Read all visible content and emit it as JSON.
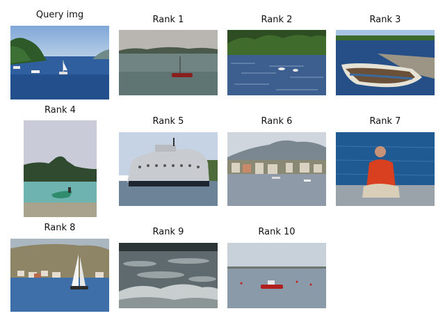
{
  "figure": {
    "panels": [
      {
        "id": "query",
        "caption": "Query img",
        "scene": "harbor with green hills, moored sailboats and blue bay"
      },
      {
        "id": "rank1",
        "caption": "Rank 1",
        "scene": "grey calm lake with small red boat"
      },
      {
        "id": "rank2",
        "caption": "Rank 2",
        "scene": "rippled blue water with dark treeline and swans"
      },
      {
        "id": "rank3",
        "caption": "Rank 3",
        "scene": "wooden rowboat moored at a stone pier"
      },
      {
        "id": "rank4",
        "caption": "Rank 4",
        "scene": "rocky hill over turquoise water with a small boat"
      },
      {
        "id": "rank5",
        "caption": "Rank 5",
        "scene": "white old ship with round windows in harbor"
      },
      {
        "id": "rank6",
        "caption": "Rank 6",
        "scene": "seaside town below mountains with boats"
      },
      {
        "id": "rank7",
        "caption": "Rank 7",
        "scene": "man in red jacket sitting on seawall by blue sea"
      },
      {
        "id": "rank8",
        "caption": "Rank 8",
        "scene": "white sailboat in front of a hillside village"
      },
      {
        "id": "rank9",
        "caption": "Rank 9",
        "scene": "grey choppy waves with white foam"
      },
      {
        "id": "rank10",
        "caption": "Rank 10",
        "scene": "flat lake with a red motorboat and buoys"
      }
    ]
  }
}
